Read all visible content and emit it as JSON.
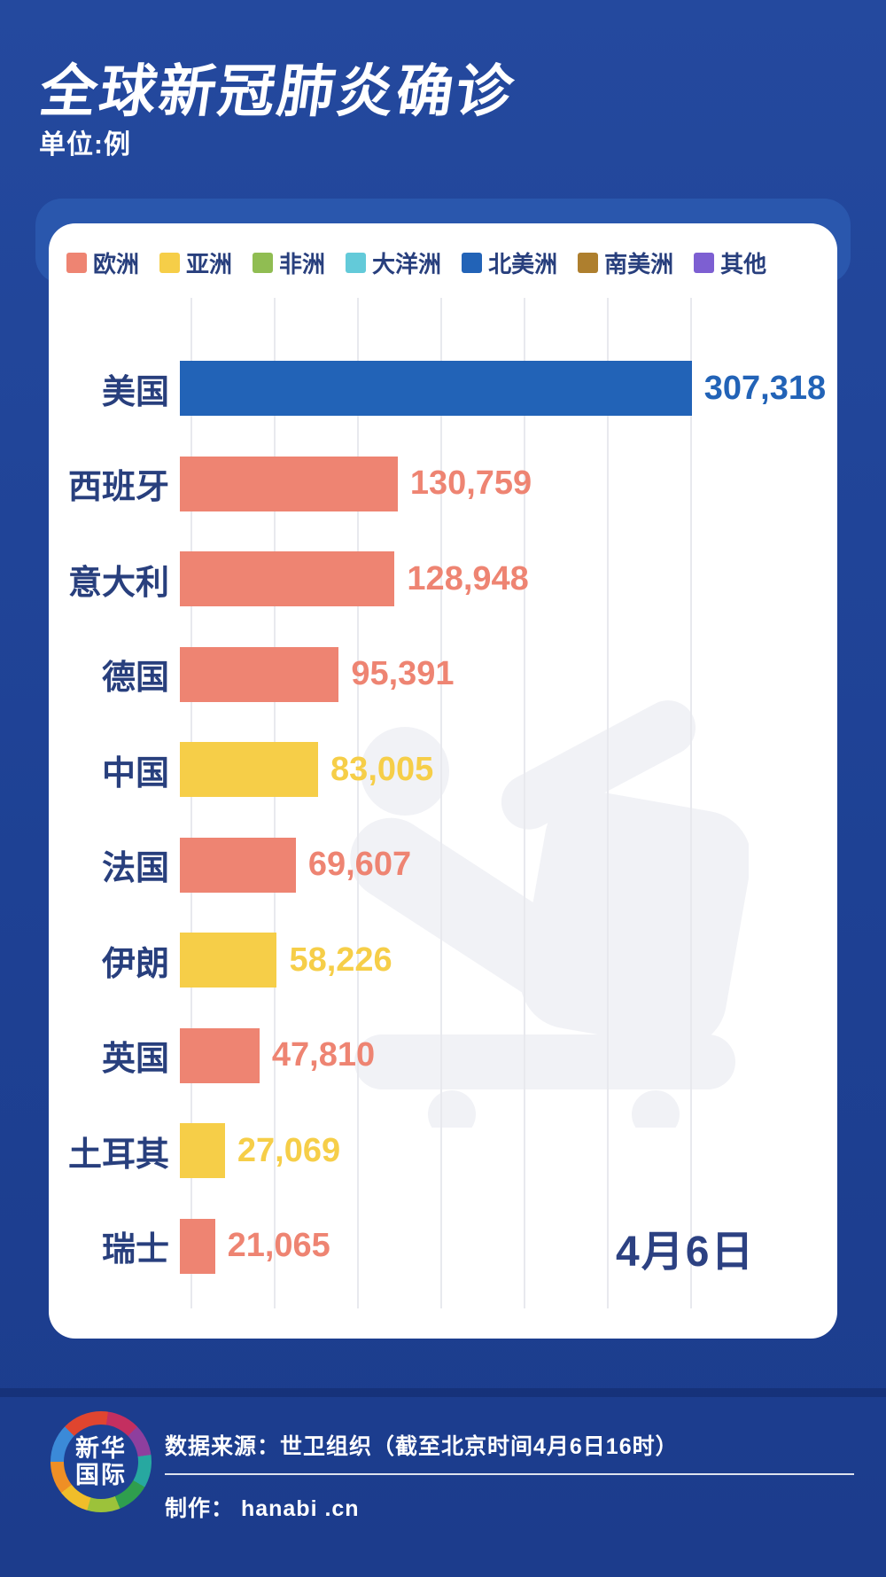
{
  "header": {
    "title": "全球新冠肺炎确诊",
    "unit_label": "单位:例"
  },
  "legend": [
    {
      "key": "europe",
      "label": "欧洲"
    },
    {
      "key": "asia",
      "label": "亚洲"
    },
    {
      "key": "africa",
      "label": "非洲"
    },
    {
      "key": "oceania",
      "label": "大洋洲"
    },
    {
      "key": "north_america",
      "label": "北美洲"
    },
    {
      "key": "south_america",
      "label": "南美洲"
    },
    {
      "key": "other",
      "label": "其他"
    }
  ],
  "colors": {
    "continent": {
      "europe": "#ee8472",
      "asia": "#f6ce48",
      "africa": "#90bd52",
      "oceania": "#63cad9",
      "north_america": "#2263b7",
      "south_america": "#ae7f2e",
      "other": "#7d5fd2"
    },
    "page_background": "#1e4194",
    "card_back_band": "#2a57ad",
    "card_background": "#ffffff",
    "label_navy": "#283f7d",
    "gridline": "#e8e9ee",
    "watermark": "#f1f2f6"
  },
  "chart_data": {
    "type": "bar",
    "orientation": "horizontal",
    "title": "全球新冠肺炎确诊",
    "unit": "例",
    "date_label": "4月6日",
    "x_axis_max": 300000,
    "x_gridline_step": 50000,
    "grid": true,
    "legend_position": "top",
    "categories": [
      "美国",
      "西班牙",
      "意大利",
      "德国",
      "中国",
      "法国",
      "伊朗",
      "英国",
      "土耳其",
      "瑞士"
    ],
    "values": [
      307318,
      130759,
      128948,
      95391,
      83005,
      69607,
      58226,
      47810,
      27069,
      21065
    ],
    "value_labels": [
      "307,318",
      "130,759",
      "128,948",
      "95,391",
      "83,005",
      "69,607",
      "58,226",
      "47,810",
      "27,069",
      "21,065"
    ],
    "continents": [
      "north_america",
      "europe",
      "europe",
      "europe",
      "asia",
      "europe",
      "asia",
      "europe",
      "asia",
      "europe"
    ]
  },
  "footer": {
    "logo_line1": "新华",
    "logo_line2": "国际",
    "source_line": "数据来源：世卫组织（截至北京时间4月6日16时）",
    "credit_line": "制作： hanabi .cn"
  }
}
